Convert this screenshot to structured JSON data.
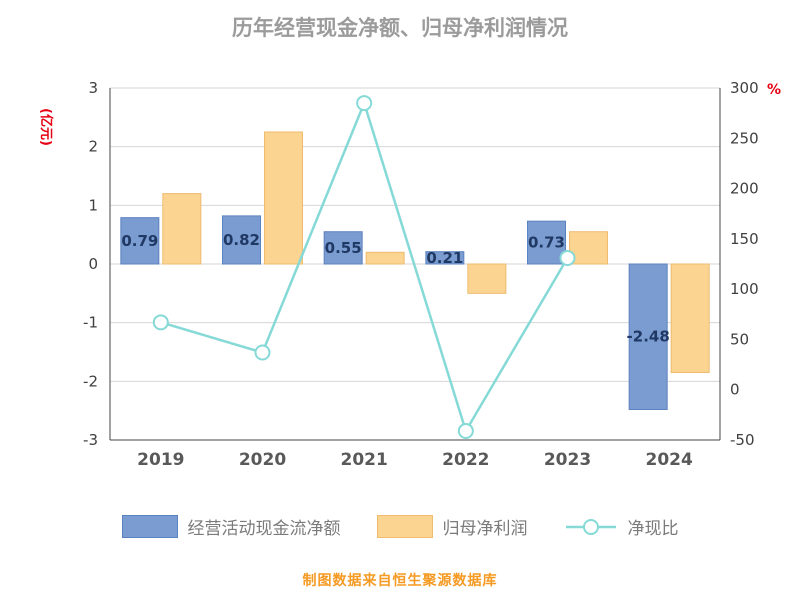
{
  "title": "历年经营现金净额、归母净利润情况",
  "footer": "制图数据来自恒生聚源数据库",
  "chart_data": {
    "type": "bar",
    "subtype": "bar+line combo, dual axis",
    "categories": [
      "2019",
      "2020",
      "2021",
      "2022",
      "2023",
      "2024"
    ],
    "series": [
      {
        "name": "经营活动现金流净额",
        "type": "bar",
        "axis": "left",
        "color": "#7b9cd0",
        "border_color": "#5b82c0",
        "label_color": "#1f3864",
        "values": [
          0.79,
          0.82,
          0.55,
          0.21,
          0.73,
          -2.48
        ],
        "labels": [
          "0.79",
          "0.82",
          "0.55",
          "0.21",
          "0.73",
          "-2.48"
        ]
      },
      {
        "name": "归母净利润",
        "type": "bar",
        "axis": "left",
        "color": "#fcd492",
        "border_color": "#eebb6f",
        "values": [
          1.2,
          2.25,
          0.2,
          -0.5,
          0.55,
          -1.85
        ]
      },
      {
        "name": "净现比",
        "type": "line",
        "axis": "right",
        "color": "#85d9d6",
        "marker": "circle",
        "values": [
          67,
          37,
          285,
          -41,
          131,
          null
        ]
      }
    ],
    "left_axis": {
      "name": "(亿元)",
      "name_color": "#e60012",
      "min": -3,
      "max": 3,
      "ticks": [
        3,
        2,
        1,
        0,
        -1,
        -2,
        -3
      ]
    },
    "right_axis": {
      "name": "%",
      "name_color": "#e60012",
      "min": -50,
      "max": 300,
      "ticks": [
        300,
        250,
        200,
        150,
        100,
        50,
        0,
        -50
      ]
    },
    "grid": true,
    "legend_position": "bottom"
  }
}
